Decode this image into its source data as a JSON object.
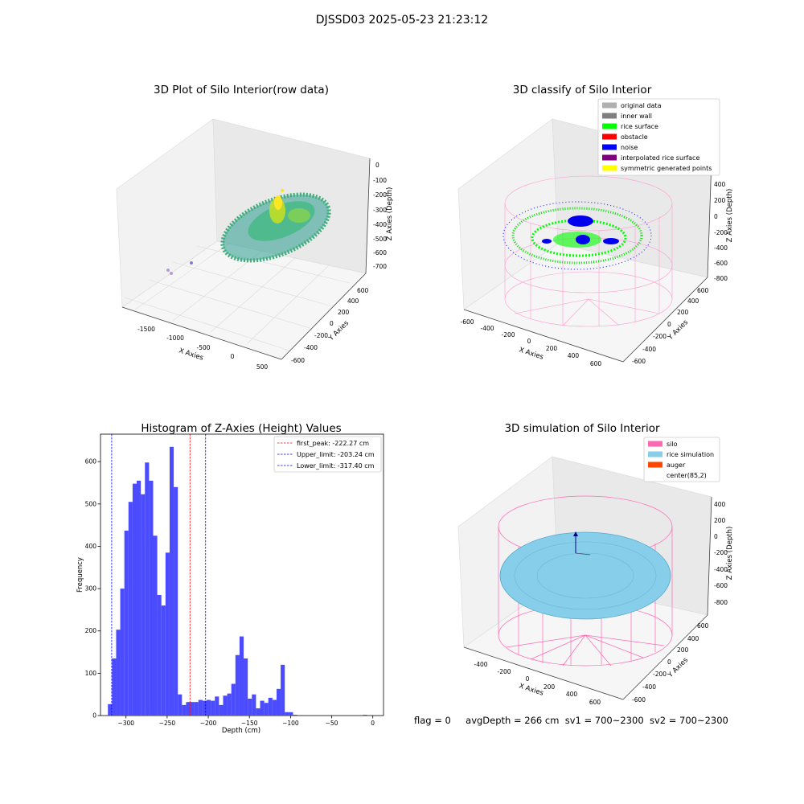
{
  "suptitle": "DJSSD03 2025-05-23 21:23:12",
  "footer": {
    "flag": "flag = 0",
    "avg_depth": "avgDepth = 266 cm",
    "sv1": "sv1 = 700~2300",
    "sv2": "sv2 = 700~2300"
  },
  "chart_data": [
    {
      "type": "scatter",
      "title": "3D Plot of Silo Interior(row data)",
      "xlabel": "X Axies",
      "ylabel": "Y Axies",
      "zlabel": "Z Axies (Depth)",
      "x_ticks": [
        "-1500",
        "-1000",
        "-500",
        "0",
        "500"
      ],
      "y_ticks": [
        "-600",
        "-400",
        "-200",
        "0",
        "200",
        "400",
        "600"
      ],
      "z_ticks": [
        "0",
        "-100",
        "-200",
        "-300",
        "-400",
        "-500",
        "-600",
        "-700"
      ],
      "colormap": [
        "#35b779",
        "#2a9d8f",
        "#fde725"
      ]
    },
    {
      "type": "scatter",
      "title": "3D classify of Silo Interior",
      "xlabel": "X Axies",
      "ylabel": "Y Axies",
      "zlabel": "Z Axies (Depth)",
      "x_ticks": [
        "-600",
        "-400",
        "-200",
        "0",
        "200",
        "400",
        "600"
      ],
      "y_ticks": [
        "-600",
        "-400",
        "-200",
        "0",
        "200",
        "400",
        "600"
      ],
      "z_ticks": [
        "400",
        "200",
        "0",
        "-200",
        "-400",
        "-600",
        "-800"
      ],
      "legend_position": "top-right",
      "legend": [
        {
          "label": "original data",
          "color": "#b0b0b0"
        },
        {
          "label": "inner wall",
          "color": "#808080"
        },
        {
          "label": "rice surface",
          "color": "#00ff00"
        },
        {
          "label": "obstacle",
          "color": "#ff0000"
        },
        {
          "label": "noise",
          "color": "#0000ff"
        },
        {
          "label": "interpolated rice surface",
          "color": "#800080"
        },
        {
          "label": "symmetric generated points",
          "color": "#ffff00"
        }
      ]
    },
    {
      "type": "bar",
      "title": "Histogram of Z-Axies (Height) Values",
      "xlabel": "Depth (cm)",
      "ylabel": "Frequency",
      "xlim": [
        -331,
        13
      ],
      "ylim": [
        0,
        665
      ],
      "x_ticks": [
        -300,
        -250,
        -200,
        -150,
        -100,
        -50,
        0
      ],
      "y_ticks": [
        0,
        100,
        200,
        300,
        400,
        500,
        600
      ],
      "bar_color": "#4b4bff",
      "bins": [
        {
          "x0": -322,
          "x1": -317,
          "y": 27
        },
        {
          "x0": -317,
          "x1": -312,
          "y": 135
        },
        {
          "x0": -312,
          "x1": -307,
          "y": 203
        },
        {
          "x0": -307,
          "x1": -302,
          "y": 300
        },
        {
          "x0": -302,
          "x1": -297,
          "y": 437
        },
        {
          "x0": -297,
          "x1": -292,
          "y": 505
        },
        {
          "x0": -292,
          "x1": -287,
          "y": 548
        },
        {
          "x0": -287,
          "x1": -282,
          "y": 555
        },
        {
          "x0": -282,
          "x1": -277,
          "y": 523
        },
        {
          "x0": -277,
          "x1": -272,
          "y": 598
        },
        {
          "x0": -272,
          "x1": -267,
          "y": 555
        },
        {
          "x0": -267,
          "x1": -262,
          "y": 425
        },
        {
          "x0": -262,
          "x1": -257,
          "y": 285
        },
        {
          "x0": -257,
          "x1": -252,
          "y": 260
        },
        {
          "x0": -252,
          "x1": -247,
          "y": 385
        },
        {
          "x0": -247,
          "x1": -242,
          "y": 635
        },
        {
          "x0": -242,
          "x1": -237,
          "y": 540
        },
        {
          "x0": -237,
          "x1": -232,
          "y": 50
        },
        {
          "x0": -232,
          "x1": -227,
          "y": 25
        },
        {
          "x0": -227,
          "x1": -222,
          "y": 32
        },
        {
          "x0": -222,
          "x1": -217,
          "y": 32
        },
        {
          "x0": -217,
          "x1": -212,
          "y": 32
        },
        {
          "x0": -212,
          "x1": -207,
          "y": 37
        },
        {
          "x0": -207,
          "x1": -202,
          "y": 35
        },
        {
          "x0": -202,
          "x1": -197,
          "y": 37
        },
        {
          "x0": -197,
          "x1": -192,
          "y": 35
        },
        {
          "x0": -192,
          "x1": -187,
          "y": 45
        },
        {
          "x0": -187,
          "x1": -182,
          "y": 25
        },
        {
          "x0": -182,
          "x1": -177,
          "y": 47
        },
        {
          "x0": -177,
          "x1": -172,
          "y": 52
        },
        {
          "x0": -172,
          "x1": -167,
          "y": 75
        },
        {
          "x0": -167,
          "x1": -162,
          "y": 143
        },
        {
          "x0": -162,
          "x1": -157,
          "y": 187
        },
        {
          "x0": -157,
          "x1": -152,
          "y": 135
        },
        {
          "x0": -152,
          "x1": -147,
          "y": 40
        },
        {
          "x0": -147,
          "x1": -142,
          "y": 50
        },
        {
          "x0": -142,
          "x1": -137,
          "y": 17
        },
        {
          "x0": -137,
          "x1": -132,
          "y": 35
        },
        {
          "x0": -132,
          "x1": -127,
          "y": 30
        },
        {
          "x0": -127,
          "x1": -122,
          "y": 42
        },
        {
          "x0": -122,
          "x1": -117,
          "y": 37
        },
        {
          "x0": -117,
          "x1": -112,
          "y": 63
        },
        {
          "x0": -112,
          "x1": -107,
          "y": 120
        },
        {
          "x0": -107,
          "x1": -102,
          "y": 8
        },
        {
          "x0": -102,
          "x1": -97,
          "y": 8
        },
        {
          "x0": -97,
          "x1": -92,
          "y": 2
        },
        {
          "x0": -12,
          "x1": -7,
          "y": 2
        }
      ],
      "vlines": [
        {
          "x": -222.27,
          "label": "first_peak: -222.27 cm",
          "color": "#ff0000"
        },
        {
          "x": -203.24,
          "label": "Upper_limit: -203.24 cm",
          "color": "#0000ff"
        },
        {
          "x": -317.4,
          "label": "Lower_limit: -317.40 cm",
          "color": "#0000ff"
        }
      ],
      "legend_position": "top-right"
    },
    {
      "type": "scatter",
      "title": "3D simulation of Silo Interior",
      "xlabel": "X Axies",
      "ylabel": "Y Axies",
      "zlabel": "Z Axies (Depth)",
      "x_ticks": [
        "-400",
        "-200",
        "0",
        "200",
        "400",
        "600"
      ],
      "y_ticks": [
        "-600",
        "-400",
        "-200",
        "0",
        "200",
        "400",
        "600"
      ],
      "z_ticks": [
        "400",
        "200",
        "0",
        "-200",
        "-400",
        "-600",
        "-800"
      ],
      "legend_position": "top-right",
      "legend": [
        {
          "label": "silo",
          "color": "#ff69b4"
        },
        {
          "label": "rice simulation",
          "color": "#87ceeb"
        },
        {
          "label": "auger",
          "color": "#ff4500"
        },
        {
          "label": "center(85,2)",
          "color": "#ffffff"
        }
      ]
    }
  ]
}
